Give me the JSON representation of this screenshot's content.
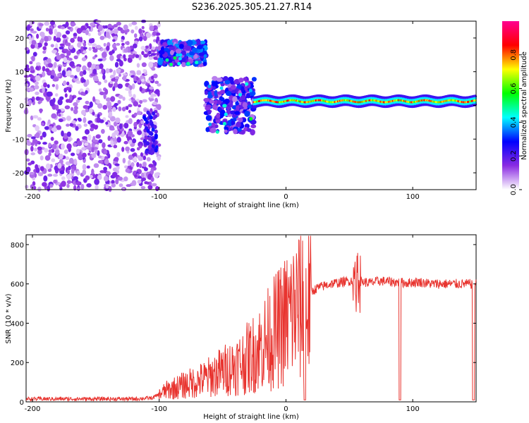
{
  "chart_data": [
    {
      "type": "heatmap",
      "title": "S236.2025.305.21.27.R14",
      "xlabel": "Height of straight line (km)",
      "ylabel": "Frequency (Hz)",
      "xlim": [
        -205,
        150
      ],
      "ylim": [
        -25,
        25
      ],
      "x_ticks": [
        -200,
        -100,
        0,
        100
      ],
      "y_ticks": [
        -20,
        -10,
        0,
        10,
        20
      ],
      "colorbar": {
        "label": "Normalized spectral amplitude",
        "range": [
          0,
          1
        ],
        "ticks": [
          "0.0",
          "0.2",
          "0.4",
          "0.6",
          "0.8"
        ],
        "colors": [
          "#ffffff",
          "#8a2be2",
          "#0000ff",
          "#00ffff",
          "#00ff00",
          "#ffff00",
          "#ff0000",
          "#ff0090"
        ]
      },
      "regions": [
        {
          "name": "scattered noise",
          "x_range": [
            -205,
            -100
          ],
          "f_range": [
            -25,
            25
          ],
          "amplitude": 0.15
        },
        {
          "name": "high band cluster",
          "x_range": [
            -100,
            -63
          ],
          "f_range": [
            12,
            19
          ],
          "amplitude": 0.3
        },
        {
          "name": "mid cluster",
          "x_range": [
            -63,
            -25
          ],
          "f_range": [
            -8,
            8
          ],
          "amplitude": 0.25
        },
        {
          "name": "narrow tone",
          "x_range": [
            -25,
            150
          ],
          "f_range": [
            0,
            2.5
          ],
          "amplitude": 0.85
        }
      ]
    },
    {
      "type": "line",
      "xlabel": "Height of straight line (km)",
      "ylabel": "SNR (10 * v/v)",
      "xlim": [
        -205,
        150
      ],
      "ylim": [
        0,
        850
      ],
      "x_ticks": [
        -200,
        -100,
        0,
        100
      ],
      "y_ticks": [
        0,
        200,
        400,
        600,
        800
      ],
      "series": [
        {
          "name": "SNR",
          "color": "#e8342f",
          "x": [
            -205,
            -180,
            -150,
            -120,
            -105,
            -95,
            -85,
            -75,
            -65,
            -55,
            -45,
            -35,
            -25,
            -15,
            -5,
            5,
            15,
            25,
            35,
            45,
            55,
            65,
            75,
            85,
            95,
            105,
            115,
            125,
            135,
            145,
            150
          ],
          "values": [
            15,
            15,
            15,
            15,
            20,
            60,
            80,
            100,
            120,
            150,
            180,
            210,
            260,
            330,
            400,
            480,
            540,
            580,
            600,
            610,
            620,
            605,
            615,
            610,
            605,
            610,
            600,
            600,
            600,
            600,
            600
          ]
        }
      ]
    }
  ]
}
